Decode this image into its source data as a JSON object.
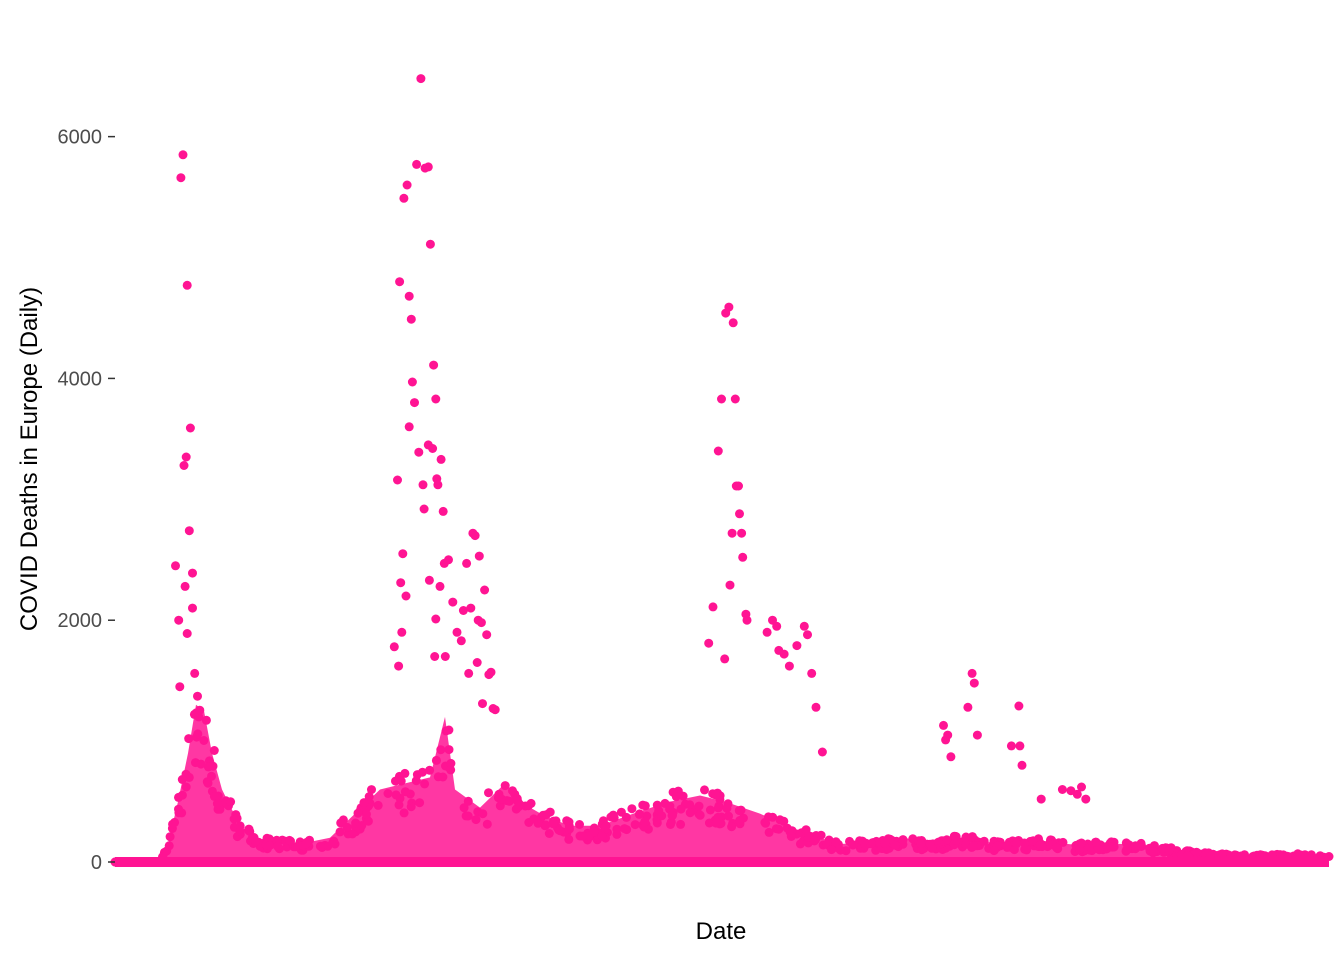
{
  "chart_data": {
    "type": "scatter",
    "title": "",
    "xlabel": "Date",
    "ylabel": "COVID Deaths in Europe (Daily)",
    "ylim": [
      0,
      6700
    ],
    "yticks": [
      0,
      2000,
      4000,
      6000
    ],
    "ytick_labels": [
      "0",
      "2000",
      "4000",
      "6000"
    ],
    "xlim": [
      "2020-01-22",
      "2023-03-10"
    ],
    "grid": false,
    "legend": "none",
    "point_color": "#ff1493",
    "series": [
      {
        "points": [
          [
            "2020-03-19",
            2450
          ],
          [
            "2020-03-22",
            2000
          ],
          [
            "2020-03-23",
            1450
          ],
          [
            "2020-03-24",
            5660
          ],
          [
            "2020-03-26",
            5850
          ],
          [
            "2020-03-27",
            3280
          ],
          [
            "2020-03-28",
            2280
          ],
          [
            "2020-03-29",
            3350
          ],
          [
            "2020-03-30",
            1890
          ],
          [
            "2020-03-30",
            4770
          ],
          [
            "2020-04-01",
            2740
          ],
          [
            "2020-04-02",
            3590
          ],
          [
            "2020-04-04",
            2390
          ],
          [
            "2020-04-04",
            2100
          ],
          [
            "2020-04-06",
            1560
          ],
          [
            "2020-04-09",
            1060
          ],
          [
            "2020-04-12",
            810
          ],
          [
            "2020-10-11",
            1780
          ],
          [
            "2020-10-14",
            3160
          ],
          [
            "2020-10-15",
            1620
          ],
          [
            "2020-10-16",
            4800
          ],
          [
            "2020-10-17",
            2310
          ],
          [
            "2020-10-18",
            1900
          ],
          [
            "2020-10-19",
            2550
          ],
          [
            "2020-10-20",
            5490
          ],
          [
            "2020-10-22",
            2200
          ],
          [
            "2020-10-23",
            5600
          ],
          [
            "2020-10-25",
            3600
          ],
          [
            "2020-10-25",
            4680
          ],
          [
            "2020-10-27",
            4490
          ],
          [
            "2020-10-28",
            3970
          ],
          [
            "2020-10-30",
            3800
          ],
          [
            "2020-11-01",
            5770
          ],
          [
            "2020-11-03",
            3390
          ],
          [
            "2020-11-05",
            6480
          ],
          [
            "2020-11-07",
            3120
          ],
          [
            "2020-11-08",
            2920
          ],
          [
            "2020-11-09",
            5740
          ],
          [
            "2020-11-12",
            5750
          ],
          [
            "2020-11-12",
            3450
          ],
          [
            "2020-11-13",
            2330
          ],
          [
            "2020-11-14",
            5110
          ],
          [
            "2020-11-16",
            3420
          ],
          [
            "2020-11-17",
            4110
          ],
          [
            "2020-11-18",
            1700
          ],
          [
            "2020-11-19",
            2010
          ],
          [
            "2020-11-19",
            3830
          ],
          [
            "2020-11-20",
            3170
          ],
          [
            "2020-11-21",
            3120
          ],
          [
            "2020-11-23",
            2280
          ],
          [
            "2020-11-24",
            3330
          ],
          [
            "2020-11-26",
            2900
          ],
          [
            "2020-11-27",
            2470
          ],
          [
            "2020-11-28",
            1700
          ],
          [
            "2020-12-01",
            2500
          ],
          [
            "2020-12-05",
            2150
          ],
          [
            "2020-12-09",
            1900
          ],
          [
            "2020-12-13",
            1830
          ],
          [
            "2020-12-15",
            2080
          ],
          [
            "2020-12-18",
            2470
          ],
          [
            "2020-12-20",
            1560
          ],
          [
            "2020-12-22",
            2100
          ],
          [
            "2020-12-24",
            2720
          ],
          [
            "2020-12-26",
            2700
          ],
          [
            "2020-12-28",
            1650
          ],
          [
            "2020-12-29",
            2000
          ],
          [
            "2020-12-30",
            2530
          ],
          [
            "2021-01-01",
            1980
          ],
          [
            "2021-01-02",
            1310
          ],
          [
            "2021-01-04",
            2250
          ],
          [
            "2021-01-06",
            1880
          ],
          [
            "2021-01-08",
            1550
          ],
          [
            "2021-01-10",
            1570
          ],
          [
            "2021-01-12",
            1270
          ],
          [
            "2021-01-14",
            1260
          ],
          [
            "2021-08-03",
            1810
          ],
          [
            "2021-08-07",
            2110
          ],
          [
            "2021-08-12",
            3400
          ],
          [
            "2021-08-15",
            3830
          ],
          [
            "2021-08-18",
            1680
          ],
          [
            "2021-08-19",
            4540
          ],
          [
            "2021-08-22",
            4590
          ],
          [
            "2021-08-23",
            2290
          ],
          [
            "2021-08-25",
            2720
          ],
          [
            "2021-08-26",
            4460
          ],
          [
            "2021-08-28",
            3830
          ],
          [
            "2021-08-29",
            3110
          ],
          [
            "2021-08-31",
            3110
          ],
          [
            "2021-09-01",
            2880
          ],
          [
            "2021-09-03",
            2720
          ],
          [
            "2021-09-04",
            2520
          ],
          [
            "2021-09-07",
            2050
          ],
          [
            "2021-09-08",
            2000
          ],
          [
            "2021-09-27",
            1900
          ],
          [
            "2021-10-02",
            2000
          ],
          [
            "2021-10-06",
            1950
          ],
          [
            "2021-10-08",
            1750
          ],
          [
            "2021-10-13",
            1720
          ],
          [
            "2021-10-18",
            1620
          ],
          [
            "2021-10-25",
            1790
          ],
          [
            "2021-11-01",
            1950
          ],
          [
            "2021-11-04",
            1880
          ],
          [
            "2021-11-08",
            1560
          ],
          [
            "2021-11-12",
            1280
          ],
          [
            "2021-11-18",
            910
          ],
          [
            "2022-03-12",
            1130
          ],
          [
            "2022-03-14",
            1010
          ],
          [
            "2022-03-16",
            1050
          ],
          [
            "2022-03-19",
            870
          ],
          [
            "2022-04-08",
            1560
          ],
          [
            "2022-04-10",
            1480
          ],
          [
            "2022-04-04",
            1280
          ],
          [
            "2022-04-13",
            1050
          ],
          [
            "2022-05-15",
            960
          ],
          [
            "2022-05-22",
            1290
          ],
          [
            "2022-05-23",
            960
          ],
          [
            "2022-05-25",
            800
          ],
          [
            "2022-06-12",
            520
          ],
          [
            "2022-07-02",
            600
          ],
          [
            "2022-07-10",
            590
          ],
          [
            "2022-07-16",
            560
          ],
          [
            "2022-07-20",
            620
          ],
          [
            "2022-07-24",
            520
          ]
        ]
      }
    ]
  }
}
